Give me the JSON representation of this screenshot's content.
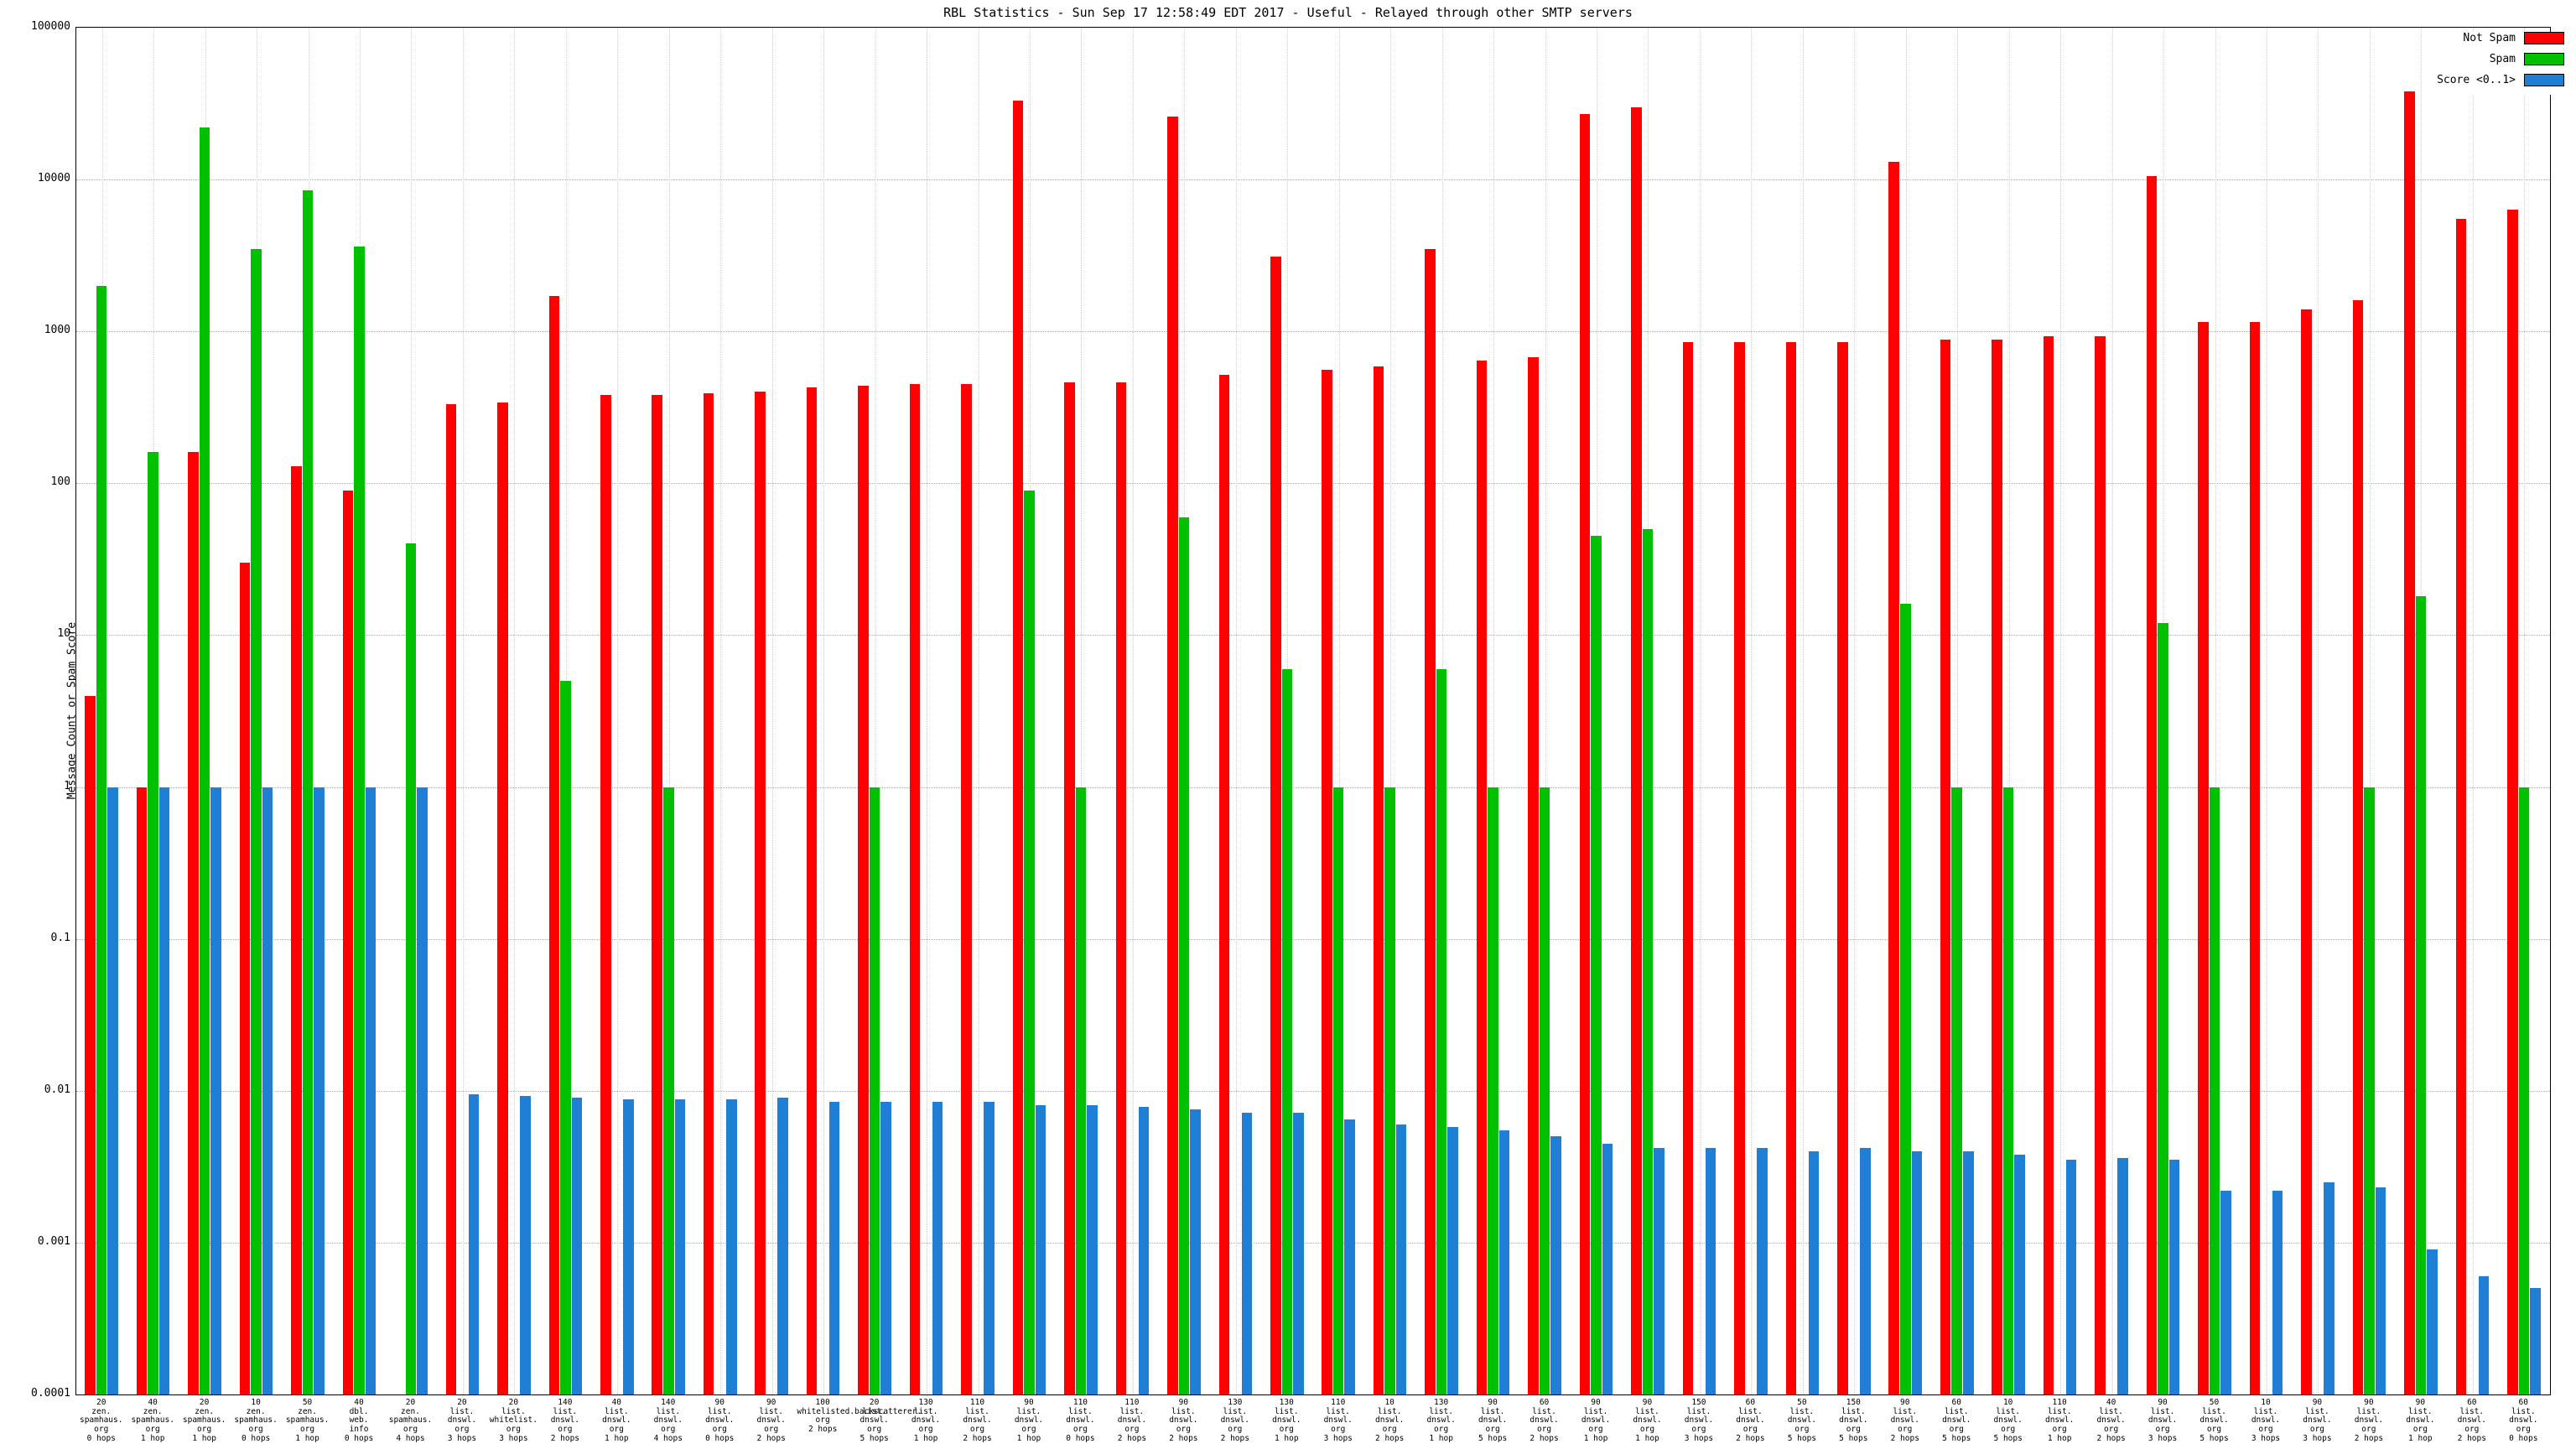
{
  "title": "RBL Statistics - Sun Sep 17 12:58:49 EDT 2017 - Useful - Relayed through other SMTP servers",
  "y_axis_label": "Message Count or Spam Score",
  "legend": [
    {
      "label": "Not Spam",
      "color": "#ff0000"
    },
    {
      "label": "Spam",
      "color": "#00c000"
    },
    {
      "label": "Score <0..1>",
      "color": "#1f7fd4"
    }
  ],
  "chart_data": {
    "type": "bar",
    "log_scale": true,
    "ylim": [
      0.0001,
      100000
    ],
    "yticks": [
      "100000",
      "10000",
      "1000",
      "100",
      "10",
      "1",
      "0.1",
      "0.01",
      "0.001",
      "0.0001"
    ],
    "series_names": [
      "Not Spam",
      "Spam",
      "Score <0..1>"
    ],
    "colors": {
      "not_spam": "#ff0000",
      "spam": "#00c000",
      "score": "#1f7fd4"
    },
    "legend_position": "top-right",
    "grid": true,
    "groups": [
      {
        "label": "20\nzen.\nspamhaus.\norg\n0 hops",
        "not_spam": 4,
        "spam": 2000,
        "score": 1
      },
      {
        "label": "40\nzen.\nspamhaus.\norg\n1 hop",
        "not_spam": 1,
        "spam": 160,
        "score": 1
      },
      {
        "label": "20\nzen.\nspamhaus.\norg\n1 hop",
        "not_spam": 160,
        "spam": 22000,
        "score": 1
      },
      {
        "label": "10\nzen.\nspamhaus.\norg\n0 hops",
        "not_spam": 30,
        "spam": 3500,
        "score": 1
      },
      {
        "label": "50\nzen.\nspamhaus.\norg\n1 hop",
        "not_spam": 130,
        "spam": 8500,
        "score": 1
      },
      {
        "label": "40\ndbl.\nweb.\ninfo\n0 hops",
        "not_spam": 90,
        "spam": 3600,
        "score": 1
      },
      {
        "label": "20\nzen.\nspamhaus.\norg\n4 hops",
        "not_spam": null,
        "spam": 40,
        "score": 1
      },
      {
        "label": "20\nlist.\ndnswl.\norg\n3 hops",
        "not_spam": 330,
        "spam": null,
        "score": 0.0095
      },
      {
        "label": "20\nlist.\nwhitelist.\norg\n3 hops",
        "not_spam": 340,
        "spam": null,
        "score": 0.0092
      },
      {
        "label": "140\nlist.\ndnswl.\norg\n2 hops",
        "not_spam": 1700,
        "spam": 5,
        "score": 0.009
      },
      {
        "label": "40\nlist.\ndnswl.\norg\n1 hop",
        "not_spam": 380,
        "spam": null,
        "score": 0.0088
      },
      {
        "label": "140\nlist.\ndnswl.\norg\n4 hops",
        "not_spam": 380,
        "spam": 1,
        "score": 0.0088
      },
      {
        "label": "90\nlist.\ndnswl.\norg\n0 hops",
        "not_spam": 390,
        "spam": null,
        "score": 0.0088
      },
      {
        "label": "90\nlist.\ndnswl.\norg\n2 hops",
        "not_spam": 400,
        "spam": null,
        "score": 0.009
      },
      {
        "label": "100\nwhitelisted.backscatterer.\norg\n2 hops",
        "not_spam": 430,
        "spam": null,
        "score": 0.0085
      },
      {
        "label": "20\nlist.\ndnswl.\norg\n5 hops",
        "not_spam": 440,
        "spam": 1,
        "score": 0.0085
      },
      {
        "label": "130\nlist.\ndnswl.\norg\n1 hop",
        "not_spam": 450,
        "spam": null,
        "score": 0.0085
      },
      {
        "label": "110\nlist.\ndnswl.\norg\n2 hops",
        "not_spam": 450,
        "spam": null,
        "score": 0.0085
      },
      {
        "label": "90\nlist.\ndnswl.\norg\n1 hop",
        "not_spam": 33000,
        "spam": 90,
        "score": 0.008
      },
      {
        "label": "110\nlist.\ndnswl.\norg\n0 hops",
        "not_spam": 460,
        "spam": 1,
        "score": 0.008
      },
      {
        "label": "110\nlist.\ndnswl.\norg\n2 hops",
        "not_spam": 460,
        "spam": null,
        "score": 0.0078
      },
      {
        "label": "90\nlist.\ndnswl.\norg\n2 hops",
        "not_spam": 26000,
        "spam": 60,
        "score": 0.0075
      },
      {
        "label": "130\nlist.\ndnswl.\norg\n2 hops",
        "not_spam": 520,
        "spam": null,
        "score": 0.0072
      },
      {
        "label": "130\nlist.\ndnswl.\norg\n1 hop",
        "not_spam": 3100,
        "spam": 6,
        "score": 0.0072
      },
      {
        "label": "110\nlist.\ndnswl.\norg\n3 hops",
        "not_spam": 560,
        "spam": 1,
        "score": 0.0065
      },
      {
        "label": "10\nlist.\ndnswl.\norg\n2 hops",
        "not_spam": 590,
        "spam": 1,
        "score": 0.006
      },
      {
        "label": "130\nlist.\ndnswl.\norg\n1 hop",
        "not_spam": 3500,
        "spam": 6,
        "score": 0.0058
      },
      {
        "label": "90\nlist.\ndnswl.\norg\n5 hops",
        "not_spam": 640,
        "spam": 1,
        "score": 0.0055
      },
      {
        "label": "60\nlist.\ndnswl.\norg\n2 hops",
        "not_spam": 680,
        "spam": 1,
        "score": 0.005
      },
      {
        "label": "90\nlist.\ndnswl.\norg\n1 hop",
        "not_spam": 27000,
        "spam": 45,
        "score": 0.0045
      },
      {
        "label": "90\nlist.\ndnswl.\norg\n1 hop",
        "not_spam": 30000,
        "spam": 50,
        "score": 0.0042
      },
      {
        "label": "150\nlist.\ndnswl.\norg\n3 hops",
        "not_spam": 850,
        "spam": null,
        "score": 0.0042
      },
      {
        "label": "60\nlist.\ndnswl.\norg\n2 hops",
        "not_spam": 850,
        "spam": null,
        "score": 0.0042
      },
      {
        "label": "50\nlist.\ndnswl.\norg\n5 hops",
        "not_spam": 850,
        "spam": null,
        "score": 0.004
      },
      {
        "label": "150\nlist.\ndnswl.\norg\n5 hops",
        "not_spam": 850,
        "spam": null,
        "score": 0.0042
      },
      {
        "label": "90\nlist.\ndnswl.\norg\n2 hops",
        "not_spam": 13000,
        "spam": 16,
        "score": 0.004
      },
      {
        "label": "60\nlist.\ndnswl.\norg\n5 hops",
        "not_spam": 880,
        "spam": 1,
        "score": 0.004
      },
      {
        "label": "10\nlist.\ndnswl.\norg\n5 hops",
        "not_spam": 880,
        "spam": 1,
        "score": 0.0038
      },
      {
        "label": "110\nlist.\ndnswl.\norg\n1 hop",
        "not_spam": 930,
        "spam": null,
        "score": 0.0035
      },
      {
        "label": "40\nlist.\ndnswl.\norg\n2 hops",
        "not_spam": 930,
        "spam": null,
        "score": 0.0036
      },
      {
        "label": "90\nlist.\ndnswl.\norg\n3 hops",
        "not_spam": 10500,
        "spam": 12,
        "score": 0.0035
      },
      {
        "label": "50\nlist.\ndnswl.\norg\n5 hops",
        "not_spam": 1150,
        "spam": 1,
        "score": 0.0022
      },
      {
        "label": "10\nlist.\ndnswl.\norg\n3 hops",
        "not_spam": 1150,
        "spam": null,
        "score": 0.0022
      },
      {
        "label": "90\nlist.\ndnswl.\norg\n3 hops",
        "not_spam": 1400,
        "spam": null,
        "score": 0.0025
      },
      {
        "label": "90\nlist.\ndnswl.\norg\n2 hops",
        "not_spam": 1600,
        "spam": 1,
        "score": 0.0023
      },
      {
        "label": "90\nlist.\ndnswl.\norg\n1 hop",
        "not_spam": 38000,
        "spam": 18,
        "score": 0.0009
      },
      {
        "label": "60\nlist.\ndnswl.\norg\n2 hops",
        "not_spam": 5500,
        "spam": null,
        "score": 0.0006
      },
      {
        "label": "60\nlist.\ndnswl.\norg\n0 hops",
        "not_spam": 6300,
        "spam": 1,
        "score": 0.0005
      }
    ]
  }
}
